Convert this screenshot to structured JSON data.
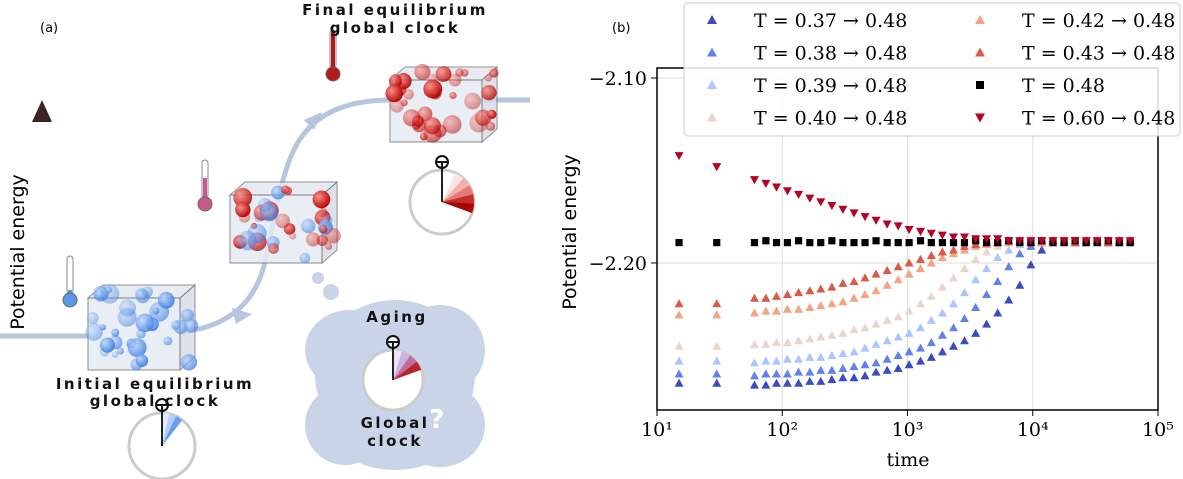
{
  "diagram": {
    "label": "(a)",
    "axis_label": "Potential energy",
    "final": {
      "title": "Final equilibrium",
      "subtitle": "global clock"
    },
    "initial": {
      "title": "Initial equilibrium",
      "subtitle": "global clock"
    },
    "aging": {
      "title": "Aging",
      "caption": [
        "Global",
        "clock"
      ],
      "question": "?"
    }
  },
  "chart_data": {
    "type": "scatter",
    "panel_label": "(b)",
    "x_label": "time",
    "y_label": "Potential energy",
    "x_scale": "log",
    "grid": true,
    "legend": "upper right",
    "xlim": [
      10,
      100000
    ],
    "xticks": [
      {
        "value": 10,
        "label": "10¹"
      },
      {
        "value": 100,
        "label": "10²"
      },
      {
        "value": 1000,
        "label": "10³"
      },
      {
        "value": 10000,
        "label": "10⁴"
      },
      {
        "value": 100000,
        "label": "10⁵"
      }
    ],
    "ylim": [
      -2.2795,
      -2.0946
    ],
    "yticks": [
      {
        "value": -2.1,
        "label": "−2.10"
      },
      {
        "value": -2.2,
        "label": "−2.20"
      }
    ],
    "x": [
      15,
      30,
      60,
      74,
      90,
      110,
      135,
      166,
      203,
      249,
      305,
      374,
      458,
      561,
      688,
      843,
      1030,
      1270,
      1550,
      1900,
      2330,
      2850,
      3500,
      4280,
      5250,
      6430,
      7880,
      9660,
      11800,
      14500,
      17800,
      21800,
      26700,
      32700,
      40100,
      49100,
      60000
    ],
    "series": [
      {
        "name": "T = 0.37 → 0.48",
        "color": "#3b4cc0",
        "marker": "triangle-up",
        "values": [
          -2.265,
          -2.265,
          -2.266,
          -2.266,
          -2.265,
          -2.265,
          -2.265,
          -2.264,
          -2.264,
          -2.263,
          -2.262,
          -2.262,
          -2.261,
          -2.259,
          -2.258,
          -2.257,
          -2.255,
          -2.253,
          -2.251,
          -2.248,
          -2.245,
          -2.242,
          -2.238,
          -2.233,
          -2.227,
          -2.22,
          -2.212,
          -2.201,
          -2.193,
          -2.189,
          -2.188,
          -2.188,
          -2.189,
          -2.188,
          -2.188,
          -2.189,
          -2.188
        ]
      },
      {
        "name": "T = 0.38 → 0.48",
        "color": "#6282ea",
        "marker": "triangle-up",
        "values": [
          -2.26,
          -2.26,
          -2.261,
          -2.26,
          -2.26,
          -2.26,
          -2.259,
          -2.259,
          -2.258,
          -2.258,
          -2.257,
          -2.256,
          -2.255,
          -2.254,
          -2.252,
          -2.25,
          -2.248,
          -2.246,
          -2.243,
          -2.239,
          -2.235,
          -2.23,
          -2.224,
          -2.217,
          -2.21,
          -2.202,
          -2.195,
          -2.191,
          -2.189,
          -2.188,
          -2.188,
          -2.189,
          -2.188,
          -2.188,
          -2.189,
          -2.188,
          -2.188
        ]
      },
      {
        "name": "T = 0.39 → 0.48",
        "color": "#aac7fd",
        "marker": "triangle-up",
        "values": [
          -2.253,
          -2.253,
          -2.254,
          -2.253,
          -2.253,
          -2.252,
          -2.252,
          -2.251,
          -2.251,
          -2.25,
          -2.249,
          -2.248,
          -2.246,
          -2.244,
          -2.242,
          -2.24,
          -2.238,
          -2.235,
          -2.231,
          -2.227,
          -2.222,
          -2.216,
          -2.209,
          -2.203,
          -2.197,
          -2.193,
          -2.19,
          -2.189,
          -2.188,
          -2.188,
          -2.189,
          -2.188,
          -2.188,
          -2.189,
          -2.188,
          -2.188,
          -2.188
        ]
      },
      {
        "name": "T = 0.40 → 0.48",
        "color": "#e8d6cc",
        "marker": "triangle-up",
        "values": [
          -2.245,
          -2.245,
          -2.244,
          -2.244,
          -2.243,
          -2.243,
          -2.242,
          -2.241,
          -2.24,
          -2.239,
          -2.238,
          -2.236,
          -2.235,
          -2.233,
          -2.231,
          -2.229,
          -2.226,
          -2.222,
          -2.218,
          -2.213,
          -2.208,
          -2.203,
          -2.198,
          -2.194,
          -2.191,
          -2.189,
          -2.189,
          -2.188,
          -2.188,
          -2.189,
          -2.188,
          -2.188,
          -2.189,
          -2.188,
          -2.188,
          -2.188,
          -2.189
        ]
      },
      {
        "name": "T = 0.42 → 0.48",
        "color": "#f4a383",
        "marker": "triangle-up",
        "values": [
          -2.228,
          -2.228,
          -2.227,
          -2.226,
          -2.226,
          -2.225,
          -2.225,
          -2.224,
          -2.223,
          -2.222,
          -2.221,
          -2.219,
          -2.217,
          -2.215,
          -2.212,
          -2.209,
          -2.206,
          -2.203,
          -2.2,
          -2.197,
          -2.195,
          -2.193,
          -2.191,
          -2.19,
          -2.189,
          -2.189,
          -2.188,
          -2.188,
          -2.189,
          -2.188,
          -2.188,
          -2.189,
          -2.188,
          -2.188,
          -2.188,
          -2.189,
          -2.188
        ]
      },
      {
        "name": "T = 0.43 → 0.48",
        "color": "#dc5a45",
        "marker": "triangle-up",
        "values": [
          -2.222,
          -2.222,
          -2.219,
          -2.219,
          -2.218,
          -2.217,
          -2.216,
          -2.215,
          -2.214,
          -2.213,
          -2.211,
          -2.21,
          -2.208,
          -2.206,
          -2.204,
          -2.202,
          -2.2,
          -2.198,
          -2.196,
          -2.194,
          -2.193,
          -2.191,
          -2.19,
          -2.189,
          -2.189,
          -2.188,
          -2.188,
          -2.189,
          -2.188,
          -2.188,
          -2.188,
          -2.189,
          -2.188,
          -2.188,
          -2.189,
          -2.188,
          -2.188
        ]
      },
      {
        "name": "T = 0.48",
        "color": "#000000",
        "marker": "square",
        "values": [
          -2.189,
          -2.189,
          -2.189,
          -2.188,
          -2.189,
          -2.189,
          -2.188,
          -2.189,
          -2.189,
          -2.188,
          -2.189,
          -2.189,
          -2.189,
          -2.188,
          -2.189,
          -2.189,
          -2.189,
          -2.188,
          -2.189,
          -2.189,
          -2.189,
          -2.189,
          -2.188,
          -2.189,
          -2.189,
          -2.188,
          -2.189,
          -2.189,
          -2.188,
          -2.189,
          -2.189,
          -2.188,
          -2.189,
          -2.189,
          -2.188,
          -2.189,
          -2.189
        ]
      },
      {
        "name": "T = 0.60 → 0.48",
        "color": "#b40426",
        "marker": "triangle-down",
        "values": [
          -2.142,
          -2.148,
          -2.155,
          -2.157,
          -2.159,
          -2.161,
          -2.163,
          -2.165,
          -2.167,
          -2.169,
          -2.171,
          -2.173,
          -2.175,
          -2.177,
          -2.179,
          -2.18,
          -2.182,
          -2.183,
          -2.184,
          -2.185,
          -2.186,
          -2.186,
          -2.187,
          -2.187,
          -2.187,
          -2.188,
          -2.188,
          -2.188,
          -2.188,
          -2.188,
          -2.188,
          -2.188,
          -2.188,
          -2.188,
          -2.188,
          -2.188,
          -2.188
        ]
      }
    ]
  }
}
